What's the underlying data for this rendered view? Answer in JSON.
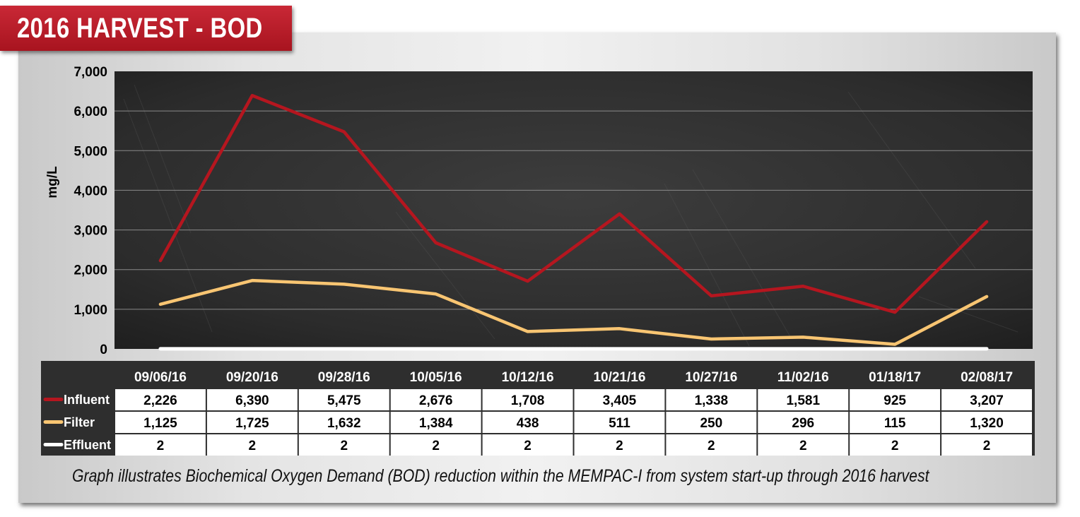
{
  "title": "2016 HARVEST - BOD",
  "caption": "Graph illustrates Biochemical Oxygen Demand (BOD) reduction within the MEMPAC-I from system start-up through 2016 harvest",
  "colors": {
    "influent": "#b5161f",
    "filter": "#f8c572",
    "effluent": "#ffffff",
    "plot_background": "#2e2e2e",
    "banner": "#b81d29"
  },
  "chart_data": {
    "type": "line",
    "ylabel": "mg/L",
    "xlabel": "",
    "ylim": [
      0,
      7000
    ],
    "yticks": [
      "0",
      "1,000",
      "2,000",
      "3,000",
      "4,000",
      "5,000",
      "6,000",
      "7,000"
    ],
    "grid": true,
    "legend": "table-left",
    "categories": [
      "09/06/16",
      "09/20/16",
      "09/28/16",
      "10/05/16",
      "10/12/16",
      "10/21/16",
      "10/27/16",
      "11/02/16",
      "01/18/17",
      "02/08/17"
    ],
    "series": [
      {
        "name": "Influent",
        "values": [
          2226,
          6390,
          5475,
          2676,
          1708,
          3405,
          1338,
          1581,
          925,
          3207
        ],
        "labels": [
          "2,226",
          "6,390",
          "5,475",
          "2,676",
          "1,708",
          "3,405",
          "1,338",
          "1,581",
          "925",
          "3,207"
        ]
      },
      {
        "name": "Filter",
        "values": [
          1125,
          1725,
          1632,
          1384,
          438,
          511,
          250,
          296,
          115,
          1320
        ],
        "labels": [
          "1,125",
          "1,725",
          "1,632",
          "1,384",
          "438",
          "511",
          "250",
          "296",
          "115",
          "1,320"
        ]
      },
      {
        "name": "Effluent",
        "values": [
          2,
          2,
          2,
          2,
          2,
          2,
          2,
          2,
          2,
          2
        ],
        "labels": [
          "2",
          "2",
          "2",
          "2",
          "2",
          "2",
          "2",
          "2",
          "2",
          "2"
        ]
      }
    ]
  }
}
